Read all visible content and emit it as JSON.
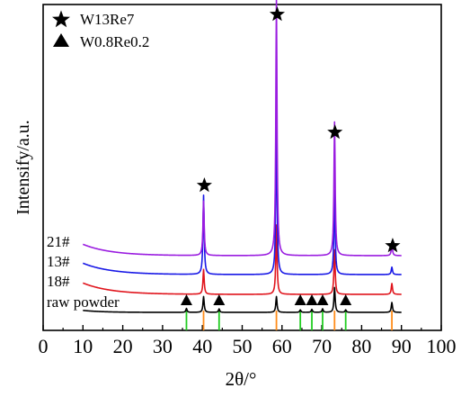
{
  "chart_data": {
    "type": "line",
    "xlabel": "2θ/°",
    "ylabel": "Intensify/a.u.",
    "xlim": [
      0,
      100
    ],
    "x_ticks": [
      "0",
      "10",
      "20",
      "30",
      "40",
      "50",
      "60",
      "70",
      "80",
      "90",
      "100"
    ],
    "legend": {
      "placement": "top-left",
      "entries": [
        {
          "marker": "star",
          "label": "W13Re7"
        },
        {
          "marker": "triangle",
          "label": "W0.8Re0.2"
        }
      ]
    },
    "series": [
      {
        "name": "raw powder",
        "color": "#000000",
        "baseline": 0.0,
        "peaks": [
          {
            "x": 36.0,
            "h": 0.08
          },
          {
            "x": 40.3,
            "h": 0.32
          },
          {
            "x": 44.2,
            "h": 0.07
          },
          {
            "x": 58.6,
            "h": 0.32
          },
          {
            "x": 64.6,
            "h": 0.05
          },
          {
            "x": 67.5,
            "h": 0.06
          },
          {
            "x": 70.2,
            "h": 0.07
          },
          {
            "x": 73.2,
            "h": 0.5
          },
          {
            "x": 76.0,
            "h": 0.05
          },
          {
            "x": 87.6,
            "h": 0.2
          }
        ]
      },
      {
        "name": "18#",
        "color": "#e0141c",
        "baseline": 0.0,
        "peaks": [
          {
            "x": 40.3,
            "h": 0.5
          },
          {
            "x": 58.6,
            "h": 1.4
          },
          {
            "x": 73.2,
            "h": 0.9
          },
          {
            "x": 87.6,
            "h": 0.22
          }
        ]
      },
      {
        "name": "13#",
        "color": "#1818e6",
        "baseline": 0.0,
        "peaks": [
          {
            "x": 40.3,
            "h": 1.6
          },
          {
            "x": 58.6,
            "h": 3.2
          },
          {
            "x": 73.2,
            "h": 1.7
          },
          {
            "x": 87.6,
            "h": 0.15
          }
        ]
      },
      {
        "name": "21#",
        "color": "#9a1ce0",
        "baseline": 0.0,
        "peaks": [
          {
            "x": 40.3,
            "h": 1.1
          },
          {
            "x": 58.6,
            "h": 5.2
          },
          {
            "x": 73.2,
            "h": 2.7
          },
          {
            "x": 87.6,
            "h": 0.22
          }
        ]
      }
    ],
    "annotations": {
      "stars": [
        40.5,
        58.8,
        73.3,
        87.8
      ],
      "triangles": [
        36.0,
        44.2,
        64.6,
        67.5,
        70.2,
        76.0
      ]
    },
    "reference_lines": [
      {
        "x": 36.0,
        "color": "#22cc22",
        "phase": "W0.8Re0.2"
      },
      {
        "x": 40.3,
        "color": "#ff8c1a",
        "phase": "W13Re7"
      },
      {
        "x": 44.2,
        "color": "#22cc22",
        "phase": "W0.8Re0.2"
      },
      {
        "x": 58.6,
        "color": "#ff8c1a",
        "phase": "W13Re7"
      },
      {
        "x": 64.6,
        "color": "#22cc22",
        "phase": "W0.8Re0.2"
      },
      {
        "x": 67.5,
        "color": "#22cc22",
        "phase": "W0.8Re0.2"
      },
      {
        "x": 70.2,
        "color": "#22cc22",
        "phase": "W0.8Re0.2"
      },
      {
        "x": 73.2,
        "color": "#ff8c1a",
        "phase": "W13Re7"
      },
      {
        "x": 76.0,
        "color": "#22cc22",
        "phase": "W0.8Re0.2"
      },
      {
        "x": 87.6,
        "color": "#ff8c1a",
        "phase": "W13Re7"
      }
    ]
  }
}
